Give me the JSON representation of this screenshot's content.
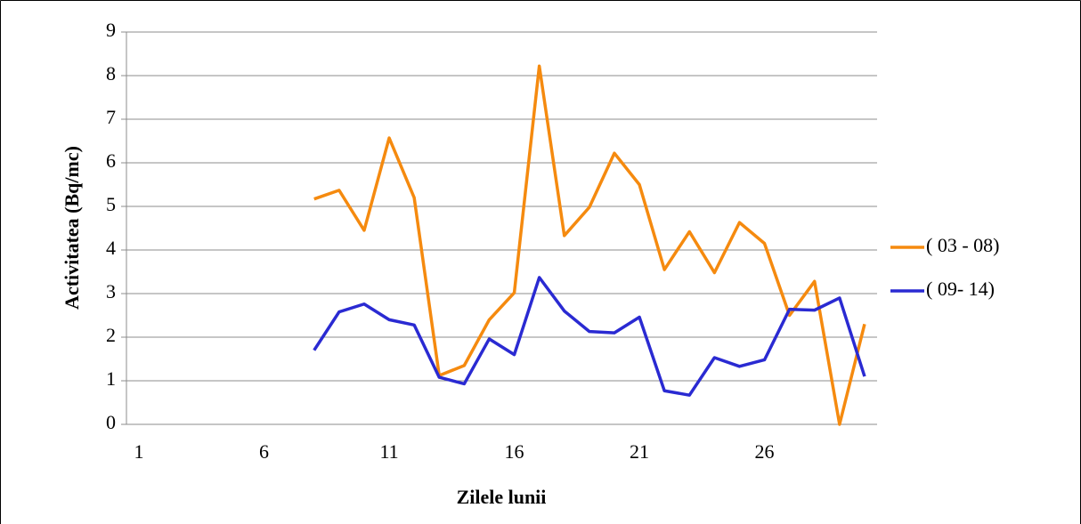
{
  "chart_data": {
    "type": "line",
    "xlabel": "Zilele lunii",
    "ylabel": "Activitatea (Bq/mc)",
    "x": [
      8,
      9,
      10,
      11,
      12,
      13,
      14,
      15,
      16,
      17,
      18,
      19,
      20,
      21,
      22,
      23,
      24,
      25,
      26,
      27,
      28,
      29,
      30
    ],
    "series": [
      {
        "name": "( 03 - 08)",
        "color": "#f58a0f",
        "values": [
          5.17,
          5.37,
          4.45,
          6.57,
          5.2,
          1.12,
          1.35,
          2.4,
          3.02,
          8.22,
          4.33,
          4.98,
          6.22,
          5.5,
          3.55,
          4.42,
          3.48,
          4.63,
          4.15,
          2.5,
          3.28,
          0,
          2.3
        ]
      },
      {
        "name": "( 09- 14)",
        "color": "#2a2ad2",
        "values": [
          1.7,
          2.58,
          2.76,
          2.4,
          2.28,
          1.08,
          0.93,
          1.96,
          1.6,
          3.37,
          2.6,
          2.13,
          2.1,
          2.46,
          0.77,
          0.67,
          1.53,
          1.33,
          1.48,
          2.64,
          2.62,
          2.9,
          1.1
        ]
      }
    ],
    "xlim": [
      0.5,
      30.5
    ],
    "xticks": [
      1,
      6,
      11,
      16,
      21,
      26
    ],
    "ylim": [
      0,
      9
    ],
    "yticks": [
      0,
      1,
      2,
      3,
      4,
      5,
      6,
      7,
      8,
      9
    ],
    "grid": true,
    "legend": "right"
  }
}
